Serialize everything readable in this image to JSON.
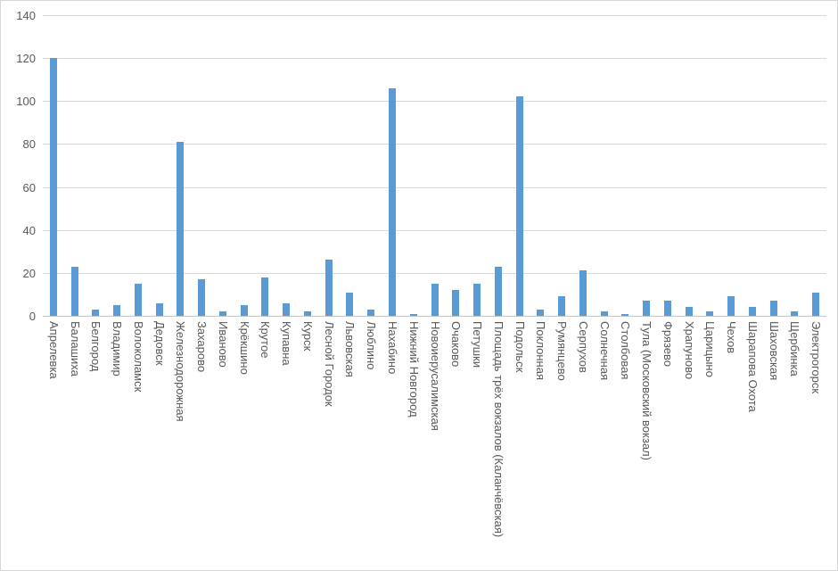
{
  "chart_data": {
    "type": "bar",
    "title": "",
    "xlabel": "",
    "ylabel": "",
    "ylim": [
      0,
      140
    ],
    "yticks": [
      0,
      20,
      40,
      60,
      80,
      100,
      120,
      140
    ],
    "grid": true,
    "legend": "none",
    "x_label_rotation": "vertical-top-to-bottom",
    "categories": [
      "Апрелевка",
      "Балашиха",
      "Белгород",
      "Владимир",
      "Волоколамск",
      "Дедовск",
      "Железнодорожная",
      "Захарово",
      "Иваново",
      "Крёкшино",
      "Крутое",
      "Купавна",
      "Курск",
      "Лесной Городок",
      "Львовская",
      "Люблино",
      "Нахабино",
      "Нижний Новгород",
      "Новоиерусалимская",
      "Очаково",
      "Петушки",
      "Площадь трёх вокзалов (Каланчёвская)",
      "Подольск",
      "Поклонная",
      "Румянцево",
      "Серпухов",
      "Солнечная",
      "Столбовая",
      "Тула (Московский вокзал)",
      "Фрязево",
      "Храпуново",
      "Царицыно",
      "Чехов",
      "Шарапова Охота",
      "Шаховская",
      "Щербинка",
      "Электрогорск"
    ],
    "values": [
      120,
      23,
      3,
      5,
      15,
      6,
      81,
      17,
      2,
      5,
      18,
      6,
      2,
      26,
      11,
      3,
      106,
      1,
      15,
      12,
      15,
      23,
      102,
      3,
      9,
      21,
      2,
      1,
      7,
      7,
      4,
      2,
      9,
      4,
      7,
      2,
      11
    ],
    "colors": {
      "bar": "#5B9BD5",
      "gridline": "#D9D9D9",
      "axis_line": "#C6C6C6",
      "label": "#595959",
      "background": "#FFFFFF",
      "border": "#D7D7D7"
    }
  }
}
